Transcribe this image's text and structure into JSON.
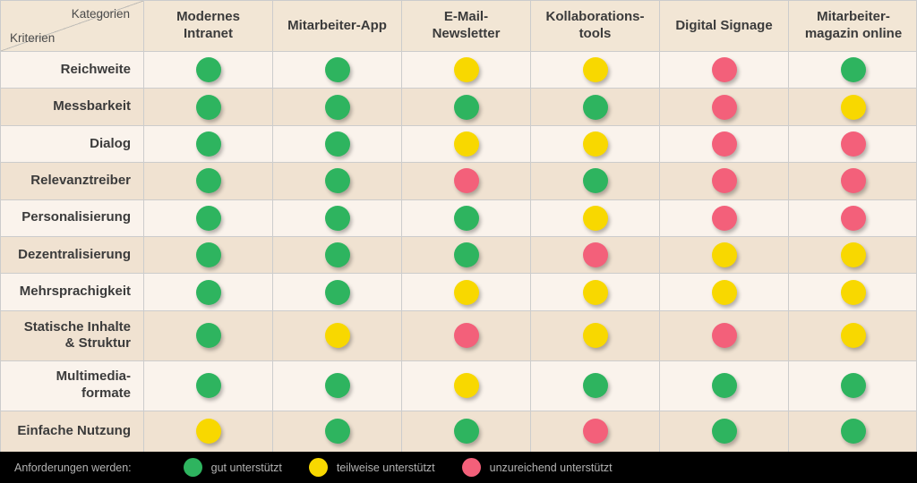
{
  "table": {
    "corner": {
      "top_right_label": "Kategorien",
      "bottom_left_label": "Kriterien"
    },
    "categories": [
      "Modernes\nIntranet",
      "Mitarbeiter-App",
      "E-Mail-\nNewsletter",
      "Kollaborations-\ntools",
      "Digital Signage",
      "Mitarbeiter-\nmagazin online"
    ],
    "rows": [
      {
        "label": "Reichweite",
        "ratings": [
          "green",
          "green",
          "yellow",
          "yellow",
          "red",
          "green"
        ]
      },
      {
        "label": "Messbarkeit",
        "ratings": [
          "green",
          "green",
          "green",
          "green",
          "red",
          "yellow"
        ]
      },
      {
        "label": "Dialog",
        "ratings": [
          "green",
          "green",
          "yellow",
          "yellow",
          "red",
          "red"
        ]
      },
      {
        "label": "Relevanztreiber",
        "ratings": [
          "green",
          "green",
          "red",
          "green",
          "red",
          "red"
        ]
      },
      {
        "label": "Personalisierung",
        "ratings": [
          "green",
          "green",
          "green",
          "yellow",
          "red",
          "red"
        ]
      },
      {
        "label": "Dezentralisierung",
        "ratings": [
          "green",
          "green",
          "green",
          "red",
          "yellow",
          "yellow"
        ]
      },
      {
        "label": "Mehrsprachigkeit",
        "ratings": [
          "green",
          "green",
          "yellow",
          "yellow",
          "yellow",
          "yellow"
        ]
      },
      {
        "label": "Statische Inhalte\n& Struktur",
        "ratings": [
          "green",
          "yellow",
          "red",
          "yellow",
          "red",
          "yellow"
        ]
      },
      {
        "label": "Multimedia-\nformate",
        "ratings": [
          "green",
          "green",
          "yellow",
          "green",
          "green",
          "green"
        ]
      },
      {
        "label": "Einfache Nutzung",
        "ratings": [
          "yellow",
          "green",
          "green",
          "red",
          "green",
          "green"
        ]
      }
    ]
  },
  "legend": {
    "label": "Anforderungen werden:",
    "items": [
      {
        "label": "gut unterstützt",
        "rating": "green"
      },
      {
        "label": "teilweise unterstützt",
        "rating": "yellow"
      },
      {
        "label": "unzureichend unterstützt",
        "rating": "red"
      }
    ]
  },
  "colors": {
    "green": "#2eb45f",
    "yellow": "#f8d800",
    "red": "#f3607a",
    "header_bg": "#f2e6d5",
    "row_light": "#faf3ec",
    "row_dark": "#f0e2d1",
    "grid_line": "#cccccc",
    "text": "#3b3b3b",
    "legend_bg": "#000000",
    "legend_text": "#b3b3b3"
  },
  "chart_data": {
    "type": "heatmap",
    "title": "",
    "columns": [
      "Modernes Intranet",
      "Mitarbeiter-App",
      "E-Mail-Newsletter",
      "Kollaborations-tools",
      "Digital Signage",
      "Mitarbeiter-magazin online"
    ],
    "rows": [
      "Reichweite",
      "Messbarkeit",
      "Dialog",
      "Relevanztreiber",
      "Personalisierung",
      "Dezentralisierung",
      "Mehrsprachigkeit",
      "Statische Inhalte & Struktur",
      "Multimedia-formate",
      "Einfache Nutzung"
    ],
    "values": [
      [
        "green",
        "green",
        "yellow",
        "yellow",
        "red",
        "green"
      ],
      [
        "green",
        "green",
        "green",
        "green",
        "red",
        "yellow"
      ],
      [
        "green",
        "green",
        "yellow",
        "yellow",
        "red",
        "red"
      ],
      [
        "green",
        "green",
        "red",
        "green",
        "red",
        "red"
      ],
      [
        "green",
        "green",
        "green",
        "yellow",
        "red",
        "red"
      ],
      [
        "green",
        "green",
        "green",
        "red",
        "yellow",
        "yellow"
      ],
      [
        "green",
        "green",
        "yellow",
        "yellow",
        "yellow",
        "yellow"
      ],
      [
        "green",
        "yellow",
        "red",
        "yellow",
        "red",
        "yellow"
      ],
      [
        "green",
        "green",
        "yellow",
        "green",
        "green",
        "green"
      ],
      [
        "yellow",
        "green",
        "green",
        "red",
        "green",
        "green"
      ]
    ],
    "scale": {
      "green": "gut unterstützt",
      "yellow": "teilweise unterstützt",
      "red": "unzureichend unterstützt"
    },
    "legend_position": "bottom"
  }
}
